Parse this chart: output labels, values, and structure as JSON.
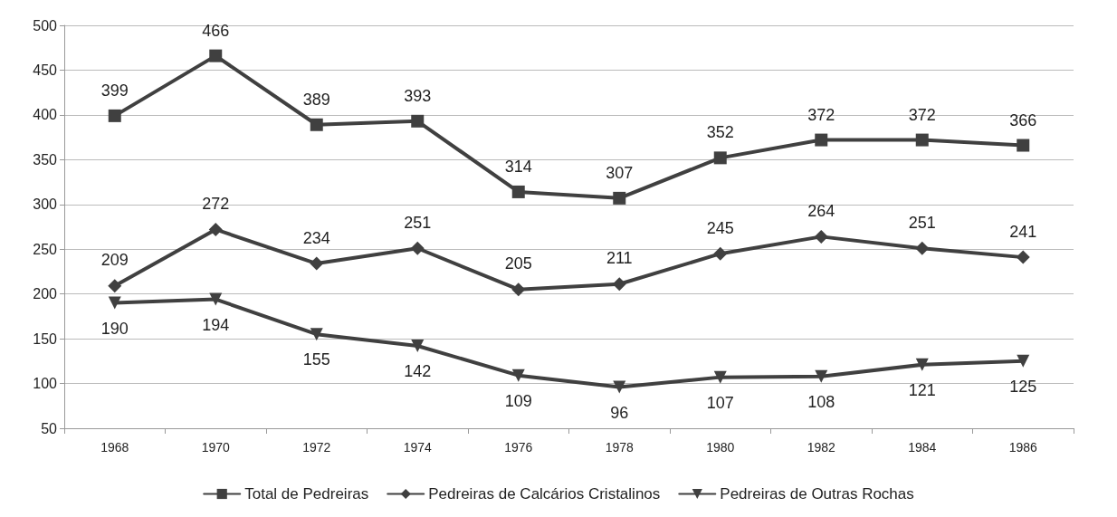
{
  "chart_data": {
    "type": "line",
    "categories": [
      "1968",
      "1970",
      "1972",
      "1974",
      "1976",
      "1978",
      "1980",
      "1982",
      "1984",
      "1986"
    ],
    "series": [
      {
        "name": "Total de Pedreiras",
        "color": "#404040",
        "marker": "square",
        "values": [
          399,
          466,
          389,
          393,
          314,
          307,
          352,
          372,
          372,
          366
        ]
      },
      {
        "name": "Pedreiras de Calcários Cristalinos",
        "color": "#404040",
        "marker": "diamond",
        "values": [
          209,
          272,
          234,
          251,
          205,
          211,
          245,
          264,
          251,
          241
        ]
      },
      {
        "name": "Pedreiras de Outras Rochas",
        "color": "#404040",
        "marker": "triangle",
        "values": [
          190,
          194,
          155,
          142,
          109,
          96,
          107,
          108,
          121,
          125
        ]
      }
    ],
    "ylim": [
      50,
      500
    ],
    "yticks": [
      50,
      100,
      150,
      200,
      250,
      300,
      350,
      400,
      450,
      500
    ],
    "grid": "y",
    "legend": "bottom",
    "data_labels": true,
    "line_style": "solid"
  }
}
